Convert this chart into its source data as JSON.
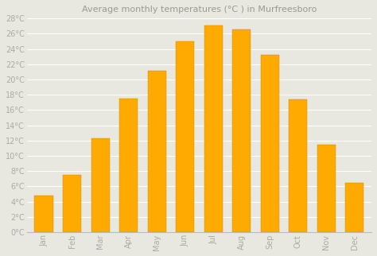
{
  "title": "Average monthly temperatures (°C ) in Murfreesboro",
  "months": [
    "Jan",
    "Feb",
    "Mar",
    "Apr",
    "May",
    "Jun",
    "Jul",
    "Aug",
    "Sep",
    "Oct",
    "Nov",
    "Dec"
  ],
  "values": [
    4.8,
    7.5,
    12.3,
    17.5,
    21.2,
    25.0,
    27.1,
    26.6,
    23.2,
    17.4,
    11.5,
    6.5
  ],
  "bar_color": "#FFAA00",
  "bar_edge_color": "#FFB820",
  "background_color": "#e8e8e0",
  "grid_color": "#ffffff",
  "ylim": [
    0,
    28
  ],
  "yticks": [
    0,
    2,
    4,
    6,
    8,
    10,
    12,
    14,
    16,
    18,
    20,
    22,
    24,
    26,
    28
  ],
  "ytick_labels": [
    "0°C",
    "2°C",
    "4°C",
    "6°C",
    "8°C",
    "10°C",
    "12°C",
    "14°C",
    "16°C",
    "18°C",
    "20°C",
    "22°C",
    "24°C",
    "26°C",
    "28°C"
  ],
  "title_fontsize": 8,
  "tick_fontsize": 7,
  "title_color": "#999999",
  "tick_color": "#aaaaaa",
  "bar_width": 0.65
}
